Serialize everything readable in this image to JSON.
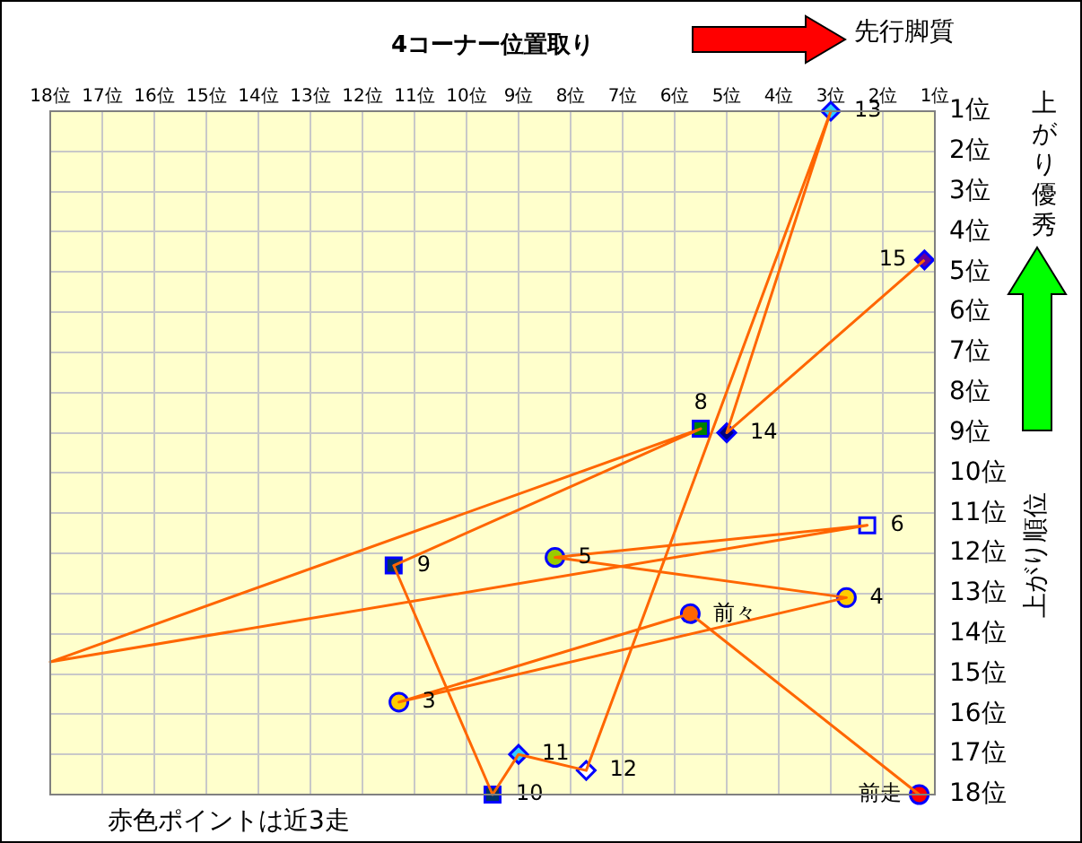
{
  "chart_data": {
    "type": "scatter",
    "xlabel": "4コーナー位置取り",
    "ylabel": "上がり順位",
    "annotations": [
      "先行脚質",
      "上がり優秀",
      "赤色ポイントは近3走",
      {
        "text": "前走",
        "x": 1.3,
        "y": 18
      },
      {
        "text": "前々",
        "x": 5.7,
        "y": 13.5
      },
      {
        "text": "3",
        "x": 11.3,
        "y": 15.7
      },
      {
        "text": "4",
        "x": 2.7,
        "y": 13.1
      },
      {
        "text": "5",
        "x": 8.3,
        "y": 12.1
      },
      {
        "text": "6",
        "x": 2.3,
        "y": 11.3
      },
      {
        "text": "8",
        "x": 5.5,
        "y": 8.9
      },
      {
        "text": "9",
        "x": 11.4,
        "y": 12.3
      },
      {
        "text": "10",
        "x": 9.5,
        "y": 18
      },
      {
        "text": "11",
        "x": 9,
        "y": 17
      },
      {
        "text": "12",
        "x": 7.7,
        "y": 17.4
      },
      {
        "text": "13",
        "x": 3,
        "y": 1
      },
      {
        "text": "14",
        "x": 5,
        "y": 9
      },
      {
        "text": "15",
        "x": 1.2,
        "y": 4.7
      }
    ],
    "xlim": [
      18,
      1
    ],
    "ylim": [
      18,
      1
    ],
    "xticks": [
      {
        "value": 18,
        "label": "18位"
      },
      {
        "value": 17,
        "label": "17位"
      },
      {
        "value": 16,
        "label": "16位"
      },
      {
        "value": 15,
        "label": "15位"
      },
      {
        "value": 14,
        "label": "14位"
      },
      {
        "value": 13,
        "label": "13位"
      },
      {
        "value": 12,
        "label": "12位"
      },
      {
        "value": 11,
        "label": "11位"
      },
      {
        "value": 10,
        "label": "10位"
      },
      {
        "value": 9,
        "label": "9位"
      },
      {
        "value": 8,
        "label": "8位"
      },
      {
        "value": 7,
        "label": "7位"
      },
      {
        "value": 6,
        "label": "6位"
      },
      {
        "value": 5,
        "label": "5位"
      },
      {
        "value": 4,
        "label": "4位"
      },
      {
        "value": 3,
        "label": "3位"
      },
      {
        "value": 2,
        "label": "2位"
      },
      {
        "value": 1,
        "label": "1位"
      }
    ],
    "yticks": [
      {
        "value": 1,
        "label": "1位"
      },
      {
        "value": 2,
        "label": "2位"
      },
      {
        "value": 3,
        "label": "3位"
      },
      {
        "value": 4,
        "label": "4位"
      },
      {
        "value": 5,
        "label": "5位"
      },
      {
        "value": 6,
        "label": "6位"
      },
      {
        "value": 7,
        "label": "7位"
      },
      {
        "value": 8,
        "label": "8位"
      },
      {
        "value": 9,
        "label": "9位"
      },
      {
        "value": 10,
        "label": "10位"
      },
      {
        "value": 11,
        "label": "11位"
      },
      {
        "value": 12,
        "label": "12位"
      },
      {
        "value": 13,
        "label": "13位"
      },
      {
        "value": 14,
        "label": "14位"
      },
      {
        "value": 15,
        "label": "15位"
      },
      {
        "value": 16,
        "label": "16位"
      },
      {
        "value": 17,
        "label": "17位"
      },
      {
        "value": 18,
        "label": "18位"
      }
    ],
    "grid": true,
    "series": [
      {
        "type": "line",
        "marker": "none",
        "color": "#ff6600",
        "x": [
          1.3,
          5.7,
          11.3,
          2.7,
          8.3,
          2.3,
          18,
          5.5,
          11.4,
          9.5,
          9,
          7.7,
          3,
          5,
          1.2
        ],
        "values": [
          18,
          13.5,
          15.7,
          13.1,
          12.1,
          11.3,
          14.7,
          8.9,
          12.3,
          18,
          17,
          17.4,
          1,
          9,
          4.7
        ]
      },
      {
        "type": "scatter",
        "marker": "circle",
        "colors": [
          "#ff0000",
          "#ff6600",
          "#ffcc00",
          "#ffcc00",
          "#99cc00"
        ],
        "x": [
          1.3,
          5.7,
          11.3,
          2.7,
          8.3
        ],
        "values": [
          18,
          13.5,
          15.7,
          13.1,
          12.1
        ]
      },
      {
        "type": "scatter",
        "marker": "square",
        "colors": [
          "#ffffcc",
          "#008000",
          "#003366",
          "#003366"
        ],
        "x": [
          2.3,
          5.5,
          11.4,
          9.5
        ],
        "values": [
          11.3,
          8.9,
          12.3,
          18
        ]
      },
      {
        "type": "scatter",
        "marker": "diamond",
        "colors": [
          "#33ccff",
          "#ffffff",
          "#33ccff",
          "#000080",
          "#660099"
        ],
        "x": [
          9,
          7.7,
          3,
          5,
          1.2
        ],
        "values": [
          17,
          17.4,
          1,
          9,
          4.7
        ]
      }
    ]
  }
}
